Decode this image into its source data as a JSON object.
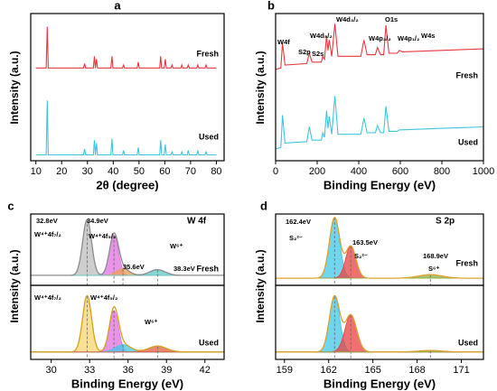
{
  "chart_data": [
    {
      "type": "line",
      "panel_label": "a",
      "xlabel": "2θ (degree)",
      "ylabel": "Intensity (a.u.)",
      "xlim": [
        8,
        83
      ],
      "xticks": [
        10,
        20,
        30,
        40,
        50,
        60,
        70,
        80
      ],
      "ylim": [
        0,
        100
      ],
      "x": [
        10,
        14.0,
        14.4,
        14.8,
        28.5,
        28.9,
        29.3,
        32.3,
        32.7,
        33.1,
        33.5,
        33.9,
        39.1,
        39.5,
        39.9,
        43.6,
        44,
        44.4,
        49.3,
        49.7,
        50.1,
        58.0,
        58.4,
        58.8,
        59.8,
        60.2,
        60.6,
        62.4,
        62.8,
        63.2,
        66.2,
        66.6,
        67.0,
        68.7,
        69.1,
        69.5,
        72.4,
        72.8,
        73.2,
        75.6,
        76,
        76.4,
        80
      ],
      "series": [
        {
          "name": "Fresh",
          "color": "#e8383d",
          "values": [
            63,
            63,
            91,
            63,
            63,
            66,
            63,
            63,
            71,
            63,
            69,
            63,
            63,
            71,
            63,
            63,
            65,
            63,
            63,
            67,
            63,
            63,
            71,
            63,
            63,
            69,
            63,
            63,
            65,
            63,
            63,
            65,
            63,
            63,
            65,
            63,
            63,
            65,
            63,
            63,
            65,
            63,
            63
          ]
        },
        {
          "name": "Used",
          "color": "#3ec6e0",
          "values": [
            4,
            4,
            41,
            4,
            4,
            8,
            4,
            4,
            14,
            4,
            12,
            4,
            4,
            15,
            4,
            4,
            7,
            4,
            4,
            9,
            4,
            4,
            14,
            4,
            4,
            11,
            4,
            4,
            6,
            4,
            4,
            6,
            4,
            4,
            7,
            4,
            4,
            7,
            4,
            4,
            6,
            4,
            4
          ]
        }
      ]
    },
    {
      "type": "line",
      "panel_label": "b",
      "xlabel": "Binding Energy (eV)",
      "ylabel": "Intensity (a.u.)",
      "xlim": [
        0,
        1000
      ],
      "xticks": [
        0,
        200,
        400,
        600,
        800,
        1000
      ],
      "ylim": [
        0,
        100
      ],
      "x": [
        0,
        25,
        33,
        45,
        150,
        162,
        175,
        220,
        227,
        235,
        245,
        252,
        258,
        270,
        285,
        300,
        410,
        425,
        440,
        480,
        490,
        505,
        520,
        531,
        545,
        585,
        595,
        610,
        800,
        1000
      ],
      "series": [
        {
          "name": "Fresh",
          "color": "#e8383d",
          "values": [
            62,
            63,
            80,
            65,
            66,
            73,
            67,
            67,
            71,
            69,
            85,
            75,
            82,
            71,
            93,
            71,
            71,
            82,
            72,
            72,
            77,
            72,
            72,
            92,
            73,
            73,
            75,
            74,
            75,
            76
          ]
        },
        {
          "name": "Used",
          "color": "#3ec6e0",
          "values": [
            8,
            9,
            31,
            12,
            13,
            23,
            14,
            14,
            19,
            16,
            34,
            22,
            30,
            18,
            44,
            18,
            18,
            29,
            19,
            19,
            24,
            19,
            19,
            37,
            20,
            20,
            21,
            21,
            22,
            23
          ]
        }
      ],
      "annotations": [
        "W4f",
        "S2p",
        "S2s",
        "W4d₅/₂",
        "W4d₃/₂",
        "O1s",
        "W4p₃/₂",
        "W4p₁/₂",
        "W4s"
      ]
    },
    {
      "type": "peak-fit",
      "panel_label": "c",
      "ylabel": "Intensity (a.u.)",
      "label": "Fresh",
      "xlim": [
        28.4,
        43.5
      ],
      "ylim": [
        0,
        100
      ],
      "baseline": 14,
      "envelope_color": "#8c8c8c",
      "components": [
        {
          "center": 32.8,
          "height": 78,
          "width": 0.35,
          "color": "#bdbdbd"
        },
        {
          "center": 34.9,
          "height": 56,
          "width": 0.35,
          "color": "#e070e0"
        },
        {
          "center": 35.6,
          "height": 9,
          "width": 0.5,
          "color": "#f0a050"
        },
        {
          "center": 38.3,
          "height": 8,
          "width": 0.6,
          "color": "#5fc8c8"
        }
      ],
      "annotations": [
        "32.8eV",
        "W⁴⁺4f₇/₂",
        "34.9eV",
        "W⁴⁺4f₅/₂",
        "W⁶⁺",
        "35.6eV",
        "38.3eV",
        "W 4f"
      ]
    },
    {
      "type": "peak-fit",
      "xlabel": "Binding Energy (eV)",
      "label": "Used",
      "xlim": [
        28.4,
        43.5
      ],
      "xticks": [
        30,
        33,
        36,
        39,
        42
      ],
      "ylim": [
        0,
        100
      ],
      "baseline": 10,
      "envelope_color": "#d4a020",
      "components": [
        {
          "center": 32.8,
          "height": 76,
          "width": 0.35,
          "color": "#f5d76e"
        },
        {
          "center": 34.9,
          "height": 56,
          "width": 0.35,
          "color": "#e070e0"
        },
        {
          "center": 35.6,
          "height": 10,
          "width": 0.6,
          "color": "#40c8e8"
        },
        {
          "center": 38.3,
          "height": 8,
          "width": 0.7,
          "color": "#e06040"
        }
      ],
      "annotations": [
        "W⁴⁺4f₇/₂",
        "W⁴⁺4f₅/₂",
        "W⁶⁺"
      ]
    },
    {
      "type": "peak-fit",
      "panel_label": "d",
      "ylabel": "Intensity (a.u.)",
      "label": "Fresh",
      "xlim": [
        158.4,
        172.5
      ],
      "ylim": [
        0,
        100
      ],
      "baseline": 10,
      "envelope_color": "#e0a030",
      "components": [
        {
          "center": 162.4,
          "height": 85,
          "width": 0.35,
          "color": "#40c8e8"
        },
        {
          "center": 163.5,
          "height": 45,
          "width": 0.35,
          "color": "#e84040"
        },
        {
          "center": 168.9,
          "height": 5,
          "width": 0.8,
          "color": "#90b040"
        }
      ],
      "annotations": [
        "162.4eV",
        "S₂²⁻",
        "163.5eV",
        "S₂²⁻",
        "168.9eV",
        "S⁶⁺",
        "S 2p"
      ]
    },
    {
      "type": "peak-fit",
      "xlabel": "Binding Energy (eV)",
      "label": "Used",
      "xlim": [
        158.4,
        172.5
      ],
      "xticks": [
        159,
        162,
        165,
        168,
        171
      ],
      "ylim": [
        0,
        100
      ],
      "baseline": 10,
      "envelope_color": "#e0a030",
      "components": [
        {
          "center": 162.4,
          "height": 75,
          "width": 0.35,
          "color": "#40c8e8"
        },
        {
          "center": 163.5,
          "height": 50,
          "width": 0.4,
          "color": "#e84040"
        },
        {
          "center": 168.9,
          "height": 2,
          "width": 0.8,
          "color": "#90b040"
        }
      ]
    }
  ]
}
